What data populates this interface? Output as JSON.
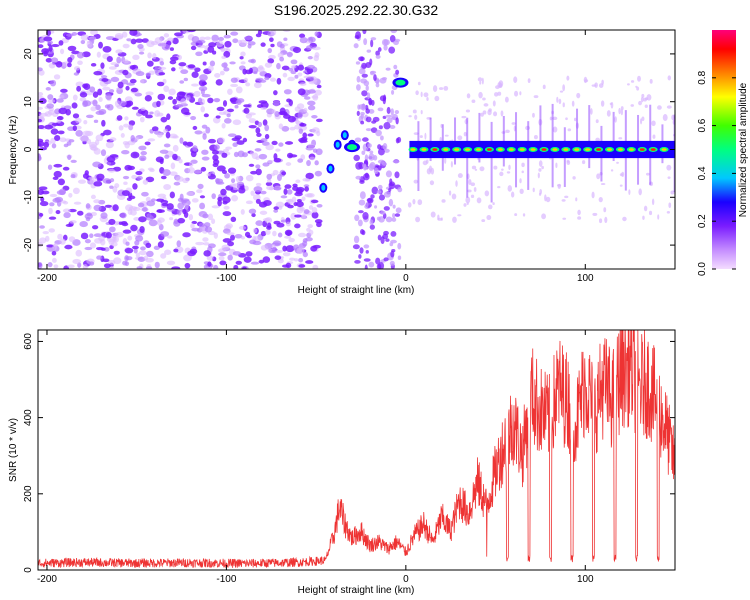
{
  "title": "S196.2025.292.22.30.G32",
  "chart_data": [
    {
      "type": "heatmap",
      "xlabel": "Height of straight line (km)",
      "ylabel": "Frequency (Hz)",
      "xlim": [
        -205,
        150
      ],
      "ylim": [
        -25,
        25
      ],
      "xticks": [
        -200,
        -100,
        0,
        100
      ],
      "yticks": [
        -20,
        -10,
        0,
        10,
        20
      ],
      "colorbar": {
        "label": "Normalized spectral amplitude",
        "range": [
          0,
          1
        ],
        "ticks": [
          0.0,
          0.2,
          0.4,
          0.6,
          0.8
        ]
      },
      "features": [
        {
          "desc": "noise region",
          "x_range": [
            -205,
            -48
          ],
          "freq_range": [
            -25,
            25
          ]
        },
        {
          "desc": "rising trace",
          "points": [
            [
              -46,
              -8
            ],
            [
              -42,
              -4
            ],
            [
              -38,
              1
            ],
            [
              -34,
              3
            ],
            [
              -30,
              1
            ]
          ]
        },
        {
          "desc": "blob",
          "x": -30,
          "freq": 0.5
        },
        {
          "desc": "blob",
          "x": -3,
          "freq": 14
        },
        {
          "desc": "steady tone",
          "x_range": [
            2,
            150
          ],
          "freq": 0
        }
      ]
    },
    {
      "type": "line",
      "xlabel": "Height of straight line (km)",
      "ylabel": "SNR (10 * v/v)",
      "xlim": [
        -205,
        150
      ],
      "ylim": [
        0,
        630
      ],
      "xticks": [
        -200,
        -100,
        0,
        100
      ],
      "yticks": [
        0,
        200,
        400,
        600
      ],
      "series": [
        {
          "name": "SNR",
          "color": "#ee3333",
          "x": [
            -205,
            -180,
            -150,
            -120,
            -90,
            -60,
            -45,
            -40,
            -37,
            -34,
            -30,
            -25,
            -20,
            -15,
            -10,
            -5,
            0,
            5,
            10,
            15,
            20,
            25,
            30,
            35,
            40,
            45,
            50,
            55,
            60,
            65,
            70,
            75,
            80,
            85,
            90,
            95,
            100,
            105,
            110,
            115,
            120,
            125,
            130,
            135,
            140,
            145,
            150
          ],
          "y": [
            18,
            20,
            18,
            19,
            17,
            20,
            25,
            100,
            180,
            130,
            90,
            110,
            70,
            80,
            60,
            80,
            50,
            100,
            130,
            80,
            150,
            110,
            200,
            160,
            250,
            180,
            280,
            360,
            420,
            330,
            500,
            450,
            430,
            520,
            480,
            420,
            540,
            450,
            530,
            480,
            560,
            580,
            520,
            530,
            470,
            400,
            300
          ]
        }
      ]
    }
  ]
}
